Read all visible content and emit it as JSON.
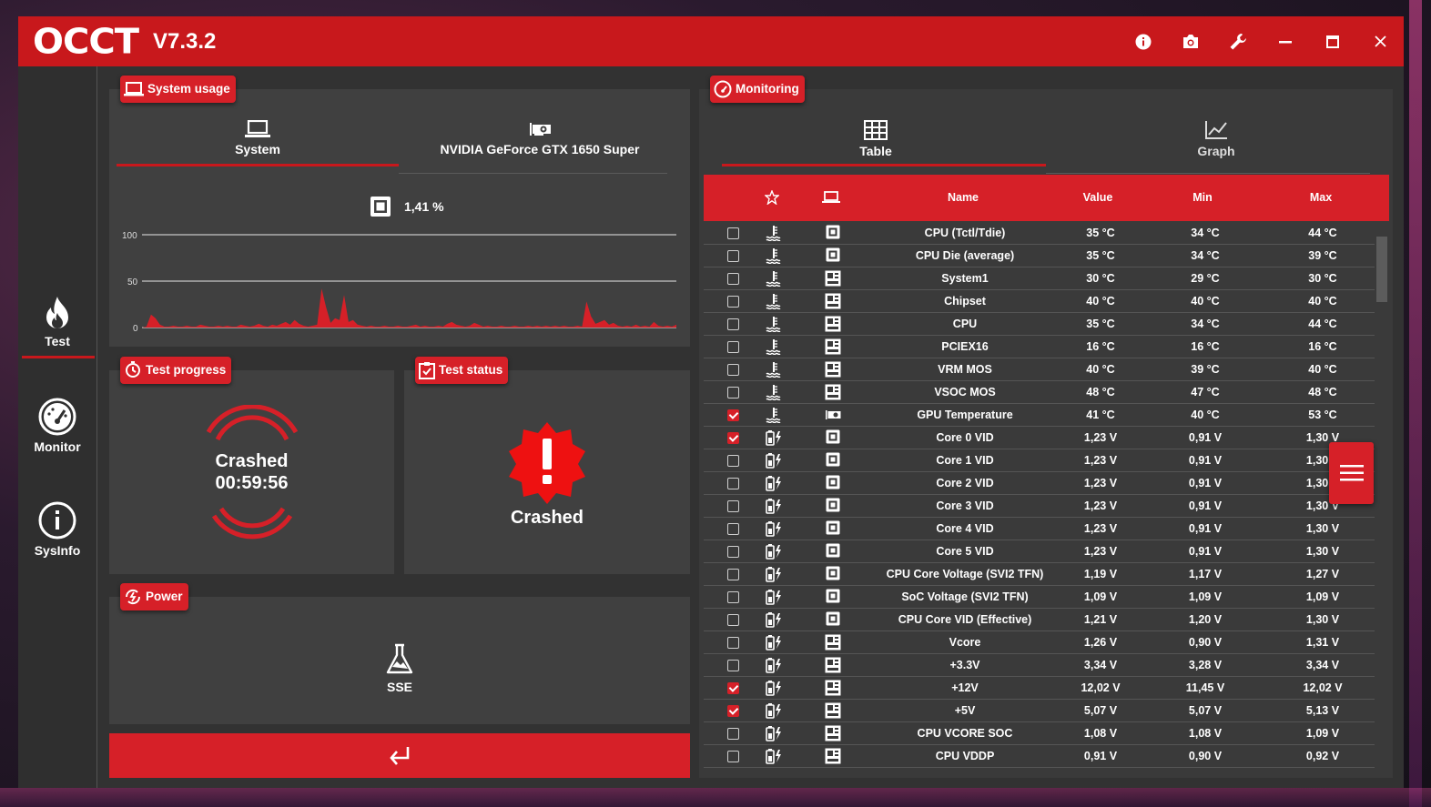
{
  "app": {
    "logo": "OCCT",
    "version": "V7.3.2"
  },
  "titlebar": {
    "controls": [
      "info-icon",
      "camera-icon",
      "wrench-icon",
      "minimize-icon",
      "maximize-icon",
      "close-icon"
    ]
  },
  "sidebar": {
    "items": [
      {
        "label": "Test",
        "icon": "flame-icon"
      },
      {
        "label": "Monitor",
        "icon": "gauge-icon"
      },
      {
        "label": "SysInfo",
        "icon": "info-icon"
      }
    ]
  },
  "system_usage": {
    "tag": "System usage",
    "tabs": [
      {
        "label": "System",
        "icon": "laptop-icon"
      },
      {
        "label": "NVIDIA GeForce GTX 1650 Super",
        "icon": "gpu-icon"
      }
    ],
    "cpu_value": "1,41 %",
    "axis": [
      "100",
      "50",
      "0"
    ]
  },
  "chart_data": {
    "type": "area",
    "title": "",
    "ylim": [
      0,
      100
    ],
    "yticks": [
      0,
      50,
      100
    ],
    "series": [
      {
        "values": [
          0,
          1,
          14,
          10,
          3,
          1,
          1,
          2,
          1,
          1,
          2,
          1,
          1,
          3,
          2,
          1,
          1,
          2,
          1,
          2,
          1,
          1,
          3,
          2,
          1,
          2,
          4,
          2,
          1,
          3,
          2,
          4,
          6,
          3,
          8,
          4,
          2,
          1,
          2,
          3,
          42,
          22,
          5,
          10,
          8,
          35,
          6,
          8,
          3,
          2,
          1,
          2,
          1,
          1,
          2,
          1,
          1,
          2,
          1,
          1,
          2,
          3,
          1,
          2,
          1,
          1,
          2,
          1,
          4,
          6,
          3,
          2,
          1,
          2,
          5,
          3,
          1,
          2,
          1,
          1,
          2,
          1,
          1,
          2,
          1,
          1,
          2,
          1,
          2,
          1,
          2,
          1,
          2,
          1,
          2,
          1,
          1,
          2,
          1,
          28,
          12,
          4,
          6,
          8,
          3,
          5,
          2,
          1,
          2,
          1,
          3,
          1,
          2,
          1,
          6,
          2,
          1,
          2,
          1,
          3
        ]
      }
    ],
    "color": "#d62028"
  },
  "test_progress": {
    "tag": "Test progress",
    "status": "Crashed",
    "time": "00:59:56"
  },
  "test_status": {
    "tag": "Test status",
    "status": "Crashed"
  },
  "power": {
    "tag": "Power",
    "mode": "SSE"
  },
  "monitoring": {
    "tag": "Monitoring",
    "tabs": [
      {
        "label": "Table",
        "icon": "table-icon"
      },
      {
        "label": "Graph",
        "icon": "graph-icon"
      }
    ],
    "columns": {
      "name": "Name",
      "value": "Value",
      "min": "Min",
      "max": "Max"
    },
    "rows": [
      {
        "checked": false,
        "type": "temp",
        "src": "cpu",
        "name": "CPU (Tctl/Tdie)",
        "value": "35 °C",
        "min": "34 °C",
        "max": "44 °C"
      },
      {
        "checked": false,
        "type": "temp",
        "src": "cpu",
        "name": "CPU Die (average)",
        "value": "35 °C",
        "min": "34 °C",
        "max": "39 °C"
      },
      {
        "checked": false,
        "type": "temp",
        "src": "mb",
        "name": "System1",
        "value": "30 °C",
        "min": "29 °C",
        "max": "30 °C"
      },
      {
        "checked": false,
        "type": "temp",
        "src": "mb",
        "name": "Chipset",
        "value": "40 °C",
        "min": "40 °C",
        "max": "40 °C"
      },
      {
        "checked": false,
        "type": "temp",
        "src": "mb",
        "name": "CPU",
        "value": "35 °C",
        "min": "34 °C",
        "max": "44 °C"
      },
      {
        "checked": false,
        "type": "temp",
        "src": "mb",
        "name": "PCIEX16",
        "value": "16 °C",
        "min": "16 °C",
        "max": "16 °C"
      },
      {
        "checked": false,
        "type": "temp",
        "src": "mb",
        "name": "VRM MOS",
        "value": "40 °C",
        "min": "39 °C",
        "max": "40 °C"
      },
      {
        "checked": false,
        "type": "temp",
        "src": "mb",
        "name": "VSOC MOS",
        "value": "48 °C",
        "min": "47 °C",
        "max": "48 °C"
      },
      {
        "checked": true,
        "type": "temp",
        "src": "gpu",
        "name": "GPU Temperature",
        "value": "41 °C",
        "min": "40 °C",
        "max": "53 °C"
      },
      {
        "checked": true,
        "type": "volt",
        "src": "cpu",
        "name": "Core 0 VID",
        "value": "1,23 V",
        "min": "0,91 V",
        "max": "1,30 V"
      },
      {
        "checked": false,
        "type": "volt",
        "src": "cpu",
        "name": "Core 1 VID",
        "value": "1,23 V",
        "min": "0,91 V",
        "max": "1,30 V"
      },
      {
        "checked": false,
        "type": "volt",
        "src": "cpu",
        "name": "Core 2 VID",
        "value": "1,23 V",
        "min": "0,91 V",
        "max": "1,30 V"
      },
      {
        "checked": false,
        "type": "volt",
        "src": "cpu",
        "name": "Core 3 VID",
        "value": "1,23 V",
        "min": "0,91 V",
        "max": "1,30 V"
      },
      {
        "checked": false,
        "type": "volt",
        "src": "cpu",
        "name": "Core 4 VID",
        "value": "1,23 V",
        "min": "0,91 V",
        "max": "1,30 V"
      },
      {
        "checked": false,
        "type": "volt",
        "src": "cpu",
        "name": "Core 5 VID",
        "value": "1,23 V",
        "min": "0,91 V",
        "max": "1,30 V"
      },
      {
        "checked": false,
        "type": "volt",
        "src": "cpu",
        "name": "CPU Core Voltage (SVI2 TFN)",
        "value": "1,19 V",
        "min": "1,17 V",
        "max": "1,27 V"
      },
      {
        "checked": false,
        "type": "volt",
        "src": "cpu",
        "name": "SoC Voltage (SVI2 TFN)",
        "value": "1,09 V",
        "min": "1,09 V",
        "max": "1,09 V"
      },
      {
        "checked": false,
        "type": "volt",
        "src": "cpu",
        "name": "CPU Core VID (Effective)",
        "value": "1,21 V",
        "min": "1,20 V",
        "max": "1,30 V"
      },
      {
        "checked": false,
        "type": "volt",
        "src": "mb",
        "name": "Vcore",
        "value": "1,26 V",
        "min": "0,90 V",
        "max": "1,31 V"
      },
      {
        "checked": false,
        "type": "volt",
        "src": "mb",
        "name": "+3.3V",
        "value": "3,34 V",
        "min": "3,28 V",
        "max": "3,34 V"
      },
      {
        "checked": true,
        "type": "volt",
        "src": "mb",
        "name": "+12V",
        "value": "12,02 V",
        "min": "11,45 V",
        "max": "12,02 V"
      },
      {
        "checked": true,
        "type": "volt",
        "src": "mb",
        "name": "+5V",
        "value": "5,07 V",
        "min": "5,07 V",
        "max": "5,13 V"
      },
      {
        "checked": false,
        "type": "volt",
        "src": "mb",
        "name": "CPU VCORE SOC",
        "value": "1,08 V",
        "min": "1,08 V",
        "max": "1,09 V"
      },
      {
        "checked": false,
        "type": "volt",
        "src": "mb",
        "name": "CPU VDDP",
        "value": "0,91 V",
        "min": "0,90 V",
        "max": "0,92 V"
      }
    ]
  },
  "colors": {
    "accent": "#d62028",
    "titlebar": "#c8181c",
    "panel": "#404040",
    "window": "#323232"
  }
}
